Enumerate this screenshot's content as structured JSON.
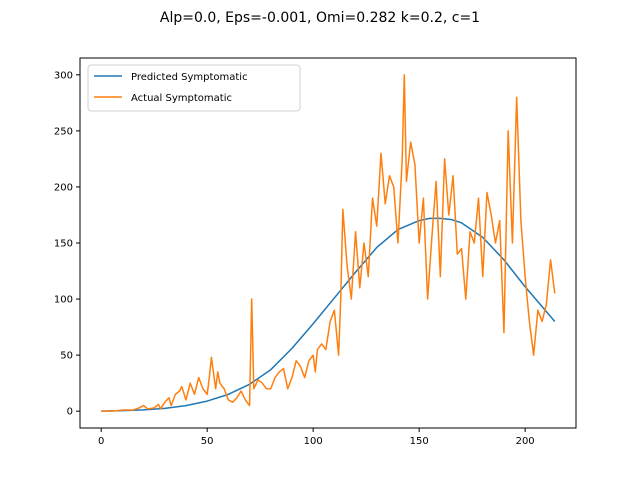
{
  "chart_data": {
    "type": "line",
    "title": "Alp=0.0, Eps=-0.001, Omi=0.282 k=0.2, c=1",
    "xlabel": "",
    "ylabel": "",
    "xlim": [
      -10,
      224
    ],
    "ylim": [
      -15,
      315
    ],
    "xticks": [
      0,
      50,
      100,
      150,
      200
    ],
    "yticks": [
      0,
      50,
      100,
      150,
      200,
      250,
      300
    ],
    "grid": false,
    "legend_position": "top-left",
    "series": [
      {
        "name": "Predicted Symptomatic",
        "color": "#1f77b4",
        "x": [
          0,
          10,
          20,
          30,
          40,
          50,
          60,
          70,
          80,
          90,
          100,
          110,
          120,
          130,
          140,
          150,
          155,
          160,
          165,
          170,
          180,
          190,
          200,
          214
        ],
        "values": [
          0,
          0.5,
          1.2,
          2.5,
          5,
          9,
          15,
          24,
          37,
          56,
          78,
          101,
          124,
          146,
          162,
          170,
          172,
          172,
          171,
          168,
          155,
          135,
          111,
          80
        ]
      },
      {
        "name": "Actual Symptomatic",
        "color": "#ff7f0e",
        "x": [
          0,
          5,
          10,
          15,
          18,
          20,
          22,
          25,
          27,
          28,
          30,
          32,
          33,
          35,
          37,
          38,
          40,
          42,
          44,
          46,
          48,
          50,
          51,
          52,
          54,
          55,
          56,
          58,
          60,
          62,
          64,
          66,
          68,
          70,
          71,
          72,
          74,
          76,
          78,
          80,
          82,
          84,
          86,
          88,
          90,
          92,
          94,
          96,
          98,
          100,
          101,
          102,
          104,
          106,
          108,
          110,
          112,
          113,
          114,
          116,
          118,
          120,
          122,
          124,
          126,
          128,
          130,
          132,
          134,
          136,
          138,
          140,
          142,
          143,
          144,
          146,
          148,
          150,
          152,
          154,
          156,
          158,
          160,
          162,
          164,
          166,
          168,
          170,
          172,
          174,
          176,
          178,
          180,
          182,
          184,
          186,
          188,
          190,
          192,
          194,
          196,
          198,
          200,
          202,
          204,
          206,
          208,
          210,
          212,
          214
        ],
        "values": [
          0,
          0,
          1,
          1,
          3,
          5,
          2,
          3,
          6,
          2,
          8,
          12,
          5,
          15,
          18,
          22,
          10,
          25,
          15,
          30,
          20,
          15,
          30,
          48,
          20,
          35,
          25,
          20,
          10,
          8,
          12,
          18,
          10,
          5,
          100,
          20,
          28,
          25,
          20,
          20,
          30,
          35,
          38,
          20,
          30,
          45,
          40,
          30,
          45,
          50,
          35,
          55,
          60,
          55,
          80,
          90,
          50,
          100,
          180,
          130,
          100,
          160,
          110,
          150,
          120,
          190,
          165,
          230,
          185,
          210,
          200,
          150,
          225,
          300,
          205,
          240,
          220,
          150,
          190,
          100,
          155,
          205,
          120,
          225,
          175,
          210,
          140,
          145,
          100,
          160,
          150,
          190,
          120,
          195,
          175,
          150,
          170,
          70,
          250,
          150,
          280,
          170,
          120,
          80,
          50,
          90,
          80,
          95,
          135,
          105
        ]
      }
    ]
  }
}
